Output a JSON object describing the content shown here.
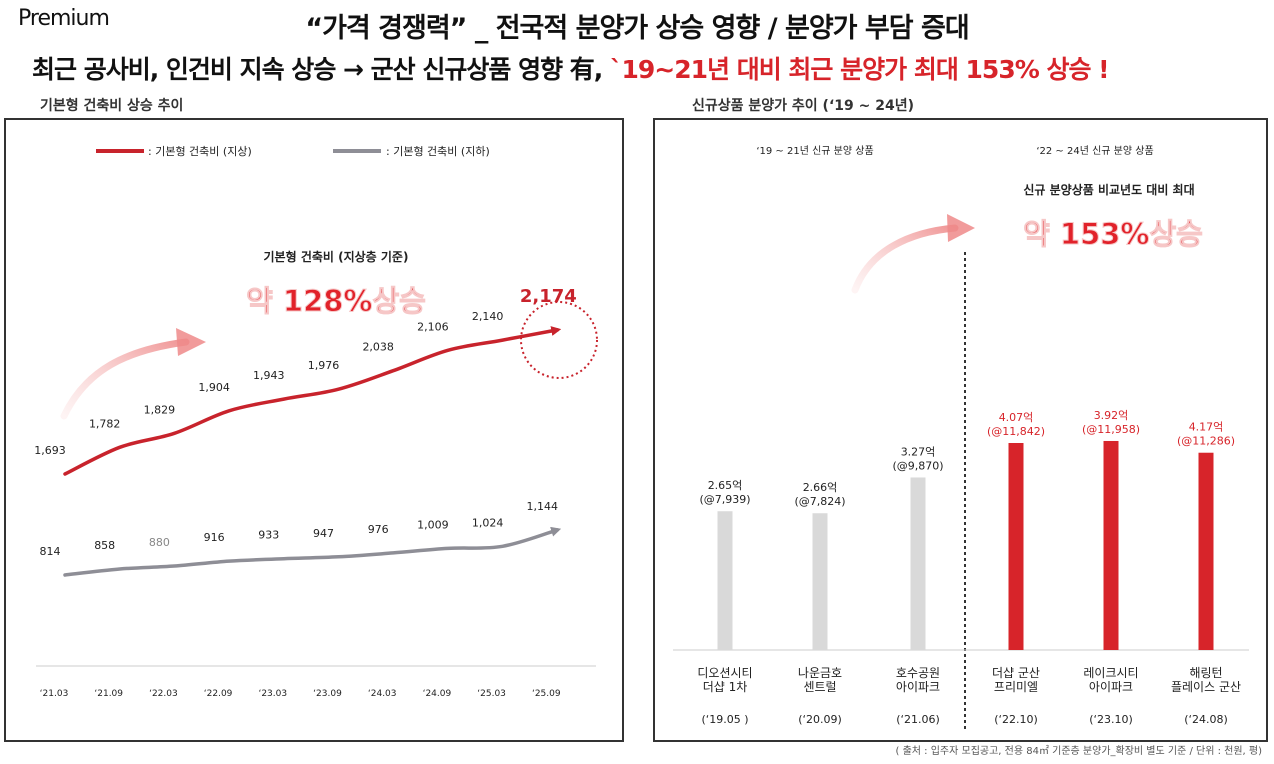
{
  "header": {
    "badge": "Premium",
    "title": "“가격 경쟁력” _ 전국적 분양가 상승 영향 / 분양가 부담 증대",
    "subtitle_black": "최근 공사비, 인건비 지속 상승 → 군산 신규상품 영향 有, ",
    "subtitle_red": "`19~21년 대비 최근 분양가 최대 153% 상승 !"
  },
  "colors": {
    "accent_red": "#d7242a",
    "line_gray": "#8e8e96",
    "bar_gray": "#d9d9d9",
    "bar_red": "#d7242a"
  },
  "left_title": "기본형 건축비 상승 추이",
  "right_title": "신규상품 분양가 추이 (‘19 ~ 24년)",
  "source": "( 출처 : 입주자 모집공고, 전용 84㎡ 기준층 분양가_확장비 별도 기준 / 단위 : 천원, 평)",
  "chart_data": [
    {
      "type": "line",
      "x": [
        "‘21.03",
        "‘21.09",
        "‘22.03",
        "‘22.09",
        "‘23.03",
        "‘23.09",
        "‘24.03",
        "‘24.09",
        "‘25.03",
        "‘25.09"
      ],
      "series": [
        {
          "name": ": 기본형 건축비 (지상)",
          "values": [
            1693,
            1782,
            1829,
            1904,
            1943,
            1976,
            2038,
            2106,
            2140,
            2174
          ],
          "color": "#c8232c"
        },
        {
          "name": ": 기본형 건축비 (지하)",
          "values": [
            814,
            858,
            880,
            916,
            933,
            947,
            976,
            1009,
            1024,
            1144
          ],
          "color": "#8e8e96"
        }
      ],
      "value_labels_above": [
        "1,693",
        "1,782",
        "1,829",
        "1,904",
        "1,943",
        "1,976",
        "2,038",
        "2,106",
        "2,140",
        "2,174"
      ],
      "value_labels_below": [
        "814",
        "858",
        "880",
        "916",
        "933",
        "947",
        "976",
        "1,009",
        "1,024",
        "1,144"
      ],
      "annotation_title": "기본형 건축비 (지상층 기준)",
      "annotation_big": "약 128%상승",
      "grid": false,
      "legend_position": "top"
    },
    {
      "type": "bar",
      "group_labels": [
        "‘19 ~ 21년 신규 분양 상품",
        "‘22 ~ 24년 신규 분양 상품"
      ],
      "categories": [
        "디오션시티\n더샵 1차",
        "나운금호\n센트럴",
        "호수공원\n아이파크",
        "더샵 군산\n프리미엘",
        "레이크시티\n아이파크",
        "해링턴\n플레이스 군산"
      ],
      "dates": [
        "(‘19.05 )",
        "(‘20.09)",
        "(‘21.06)",
        "(‘22.10)",
        "(‘23.10)",
        "(‘24.08)"
      ],
      "values": [
        7939,
        7824,
        9870,
        11842,
        11958,
        11286
      ],
      "label_top": [
        "2.65억",
        "2.66억",
        "3.27억",
        "4.07억",
        "3.92억",
        "4.17억"
      ],
      "label_bottom": [
        "(@7,939)",
        "(@7,824)",
        "(@9,870)",
        "(@11,842)",
        "(@11,958)",
        "(@11,286)"
      ],
      "highlight": [
        false,
        false,
        false,
        true,
        true,
        true
      ],
      "annotation_caption": "신규 분양상품 비교년도 대비 최대",
      "annotation_big": "약 153%상승",
      "grid": false
    }
  ]
}
